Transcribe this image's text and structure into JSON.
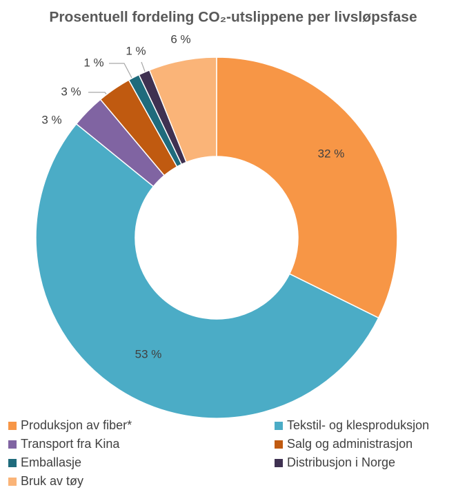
{
  "chart_data": {
    "type": "donut",
    "title": "Prosentuell fordeling CO₂-utslippene per livsløpsfase",
    "categories": [
      "Produksjon av fiber*",
      "Tekstil- og klesproduksjon",
      "Transport fra Kina",
      "Salg og administrasjon",
      "Emballasje",
      "Distribusjon i Norge",
      "Bruk av tøy"
    ],
    "values": [
      32,
      53,
      3,
      3,
      1,
      1,
      6
    ],
    "value_labels": [
      "32 %",
      "53 %",
      "3 %",
      "3 %",
      "1 %",
      "1 %",
      "6 %"
    ],
    "colors": [
      "#f79646",
      "#4bacc6",
      "#8064a2",
      "#c05a10",
      "#1f6b7c",
      "#3f3151",
      "#fab478"
    ],
    "legend": "bottom"
  }
}
